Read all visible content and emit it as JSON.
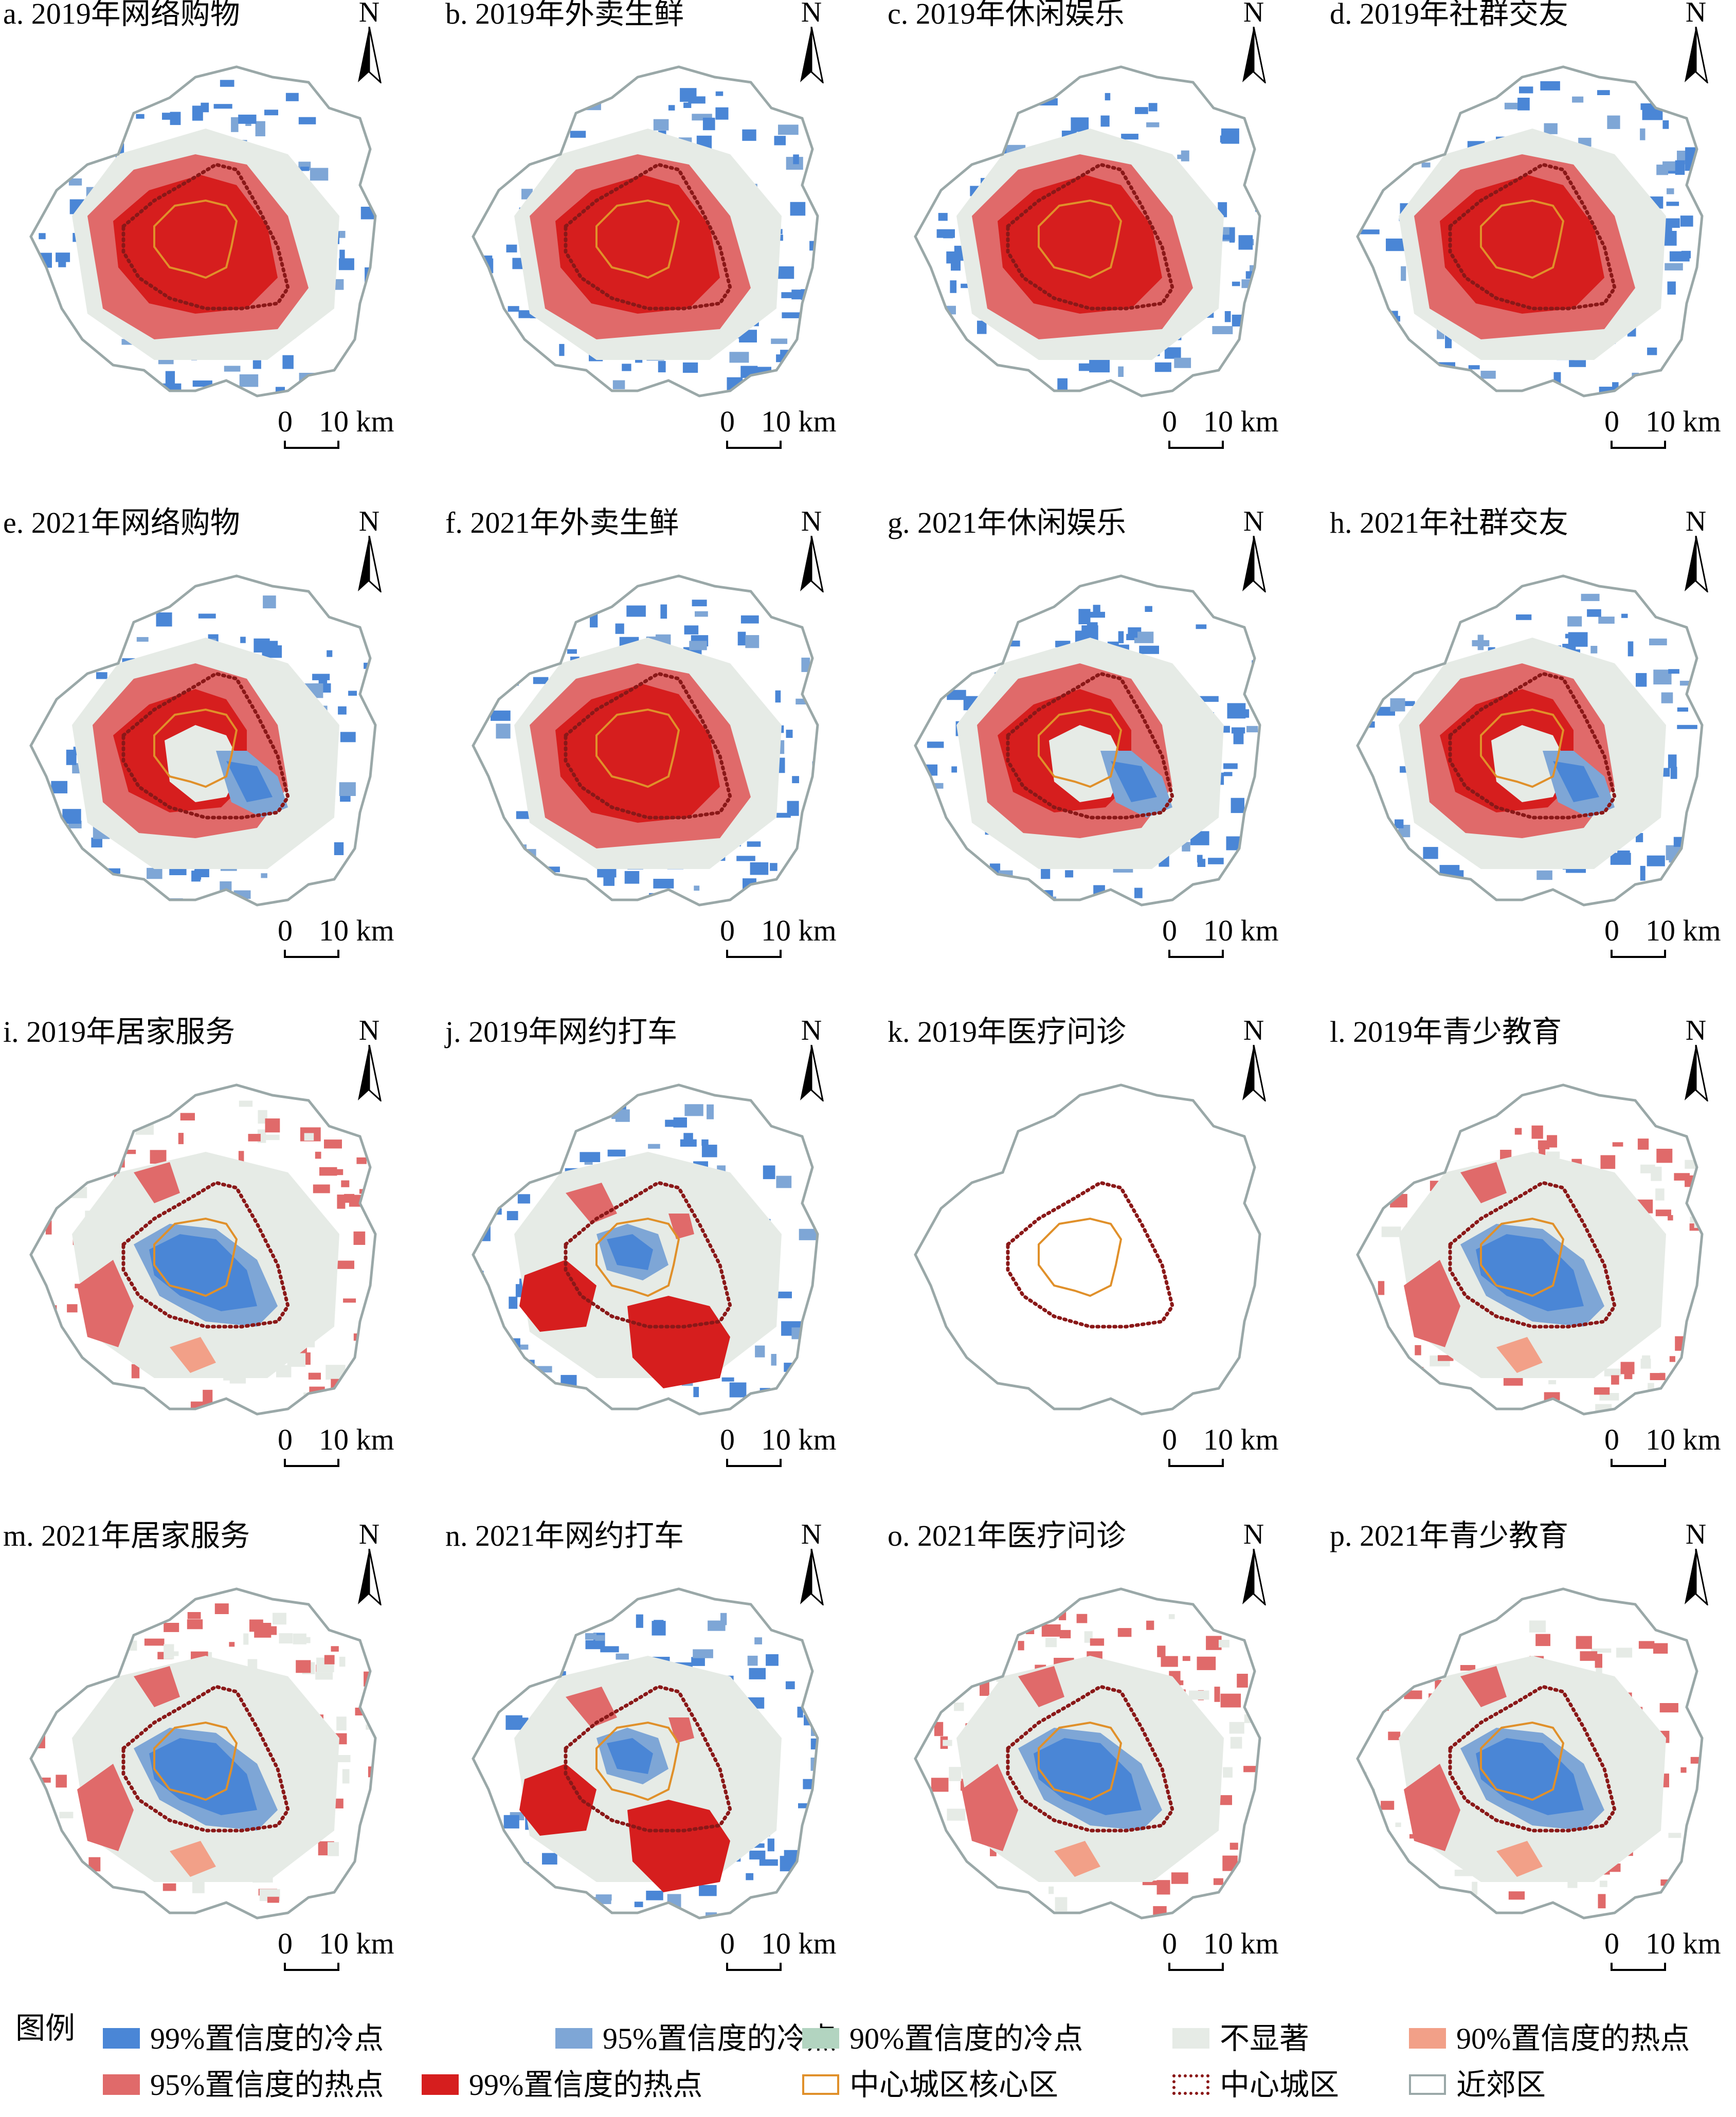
{
  "colors": {
    "cold99": "#4a86d6",
    "cold95": "#7ea6d6",
    "cold90": "#b2d4c0",
    "insig": "#e6ebe6",
    "hot90": "#f2a088",
    "hot95": "#e06a6a",
    "hot99": "#d61e1e",
    "core": "#e0902a",
    "central": "#8a1818",
    "suburb": "#9aa8a8"
  },
  "map_common": {
    "north_label": "N",
    "scale_zero": "0",
    "scale_ten": "10 km"
  },
  "panels": [
    {
      "title": "a. 2019年网络购物",
      "pattern": "hot_center"
    },
    {
      "title": "b. 2019年外卖生鲜",
      "pattern": "hot_center"
    },
    {
      "title": "c. 2019年休闲娱乐",
      "pattern": "hot_center"
    },
    {
      "title": "d. 2019年社群交友",
      "pattern": "hot_center"
    },
    {
      "title": "e. 2021年网络购物",
      "pattern": "hot_ring_cold_core"
    },
    {
      "title": "f. 2021年外卖生鲜",
      "pattern": "hot_center"
    },
    {
      "title": "g. 2021年休闲娱乐",
      "pattern": "hot_ring_cold_core"
    },
    {
      "title": "h. 2021年社群交友",
      "pattern": "hot_ring_cold_core"
    },
    {
      "title": "i. 2019年居家服务",
      "pattern": "cold_center"
    },
    {
      "title": "j. 2019年网约打车",
      "pattern": "mixed"
    },
    {
      "title": "k. 2019年医疗问诊",
      "pattern": "empty"
    },
    {
      "title": "l. 2019年青少教育",
      "pattern": "cold_center"
    },
    {
      "title": "m. 2021年居家服务",
      "pattern": "cold_center"
    },
    {
      "title": "n. 2021年网约打车",
      "pattern": "mixed"
    },
    {
      "title": "o. 2021年医疗问诊",
      "pattern": "cold_center"
    },
    {
      "title": "p. 2021年青少教育",
      "pattern": "cold_center"
    }
  ],
  "legend": {
    "title": "图例",
    "items": [
      {
        "label": "99%置信度的冷点",
        "color_key": "cold99",
        "style": "fill"
      },
      {
        "label": "95%置信度的冷点",
        "color_key": "cold95",
        "style": "fill"
      },
      {
        "label": "90%置信度的冷点",
        "color_key": "cold90",
        "style": "fill"
      },
      {
        "label": "不显著",
        "color_key": "insig",
        "style": "fill"
      },
      {
        "label": "90%置信度的热点",
        "color_key": "hot90",
        "style": "fill"
      },
      {
        "label": "95%置信度的热点",
        "color_key": "hot95",
        "style": "fill"
      },
      {
        "label": "99%置信度的热点",
        "color_key": "hot99",
        "style": "fill"
      },
      {
        "label": "中心城区核心区",
        "color_key": "core",
        "style": "outline"
      },
      {
        "label": "中心城区",
        "color_key": "central",
        "style": "dotted"
      },
      {
        "label": "近郊区",
        "color_key": "suburb",
        "style": "outline"
      }
    ]
  }
}
